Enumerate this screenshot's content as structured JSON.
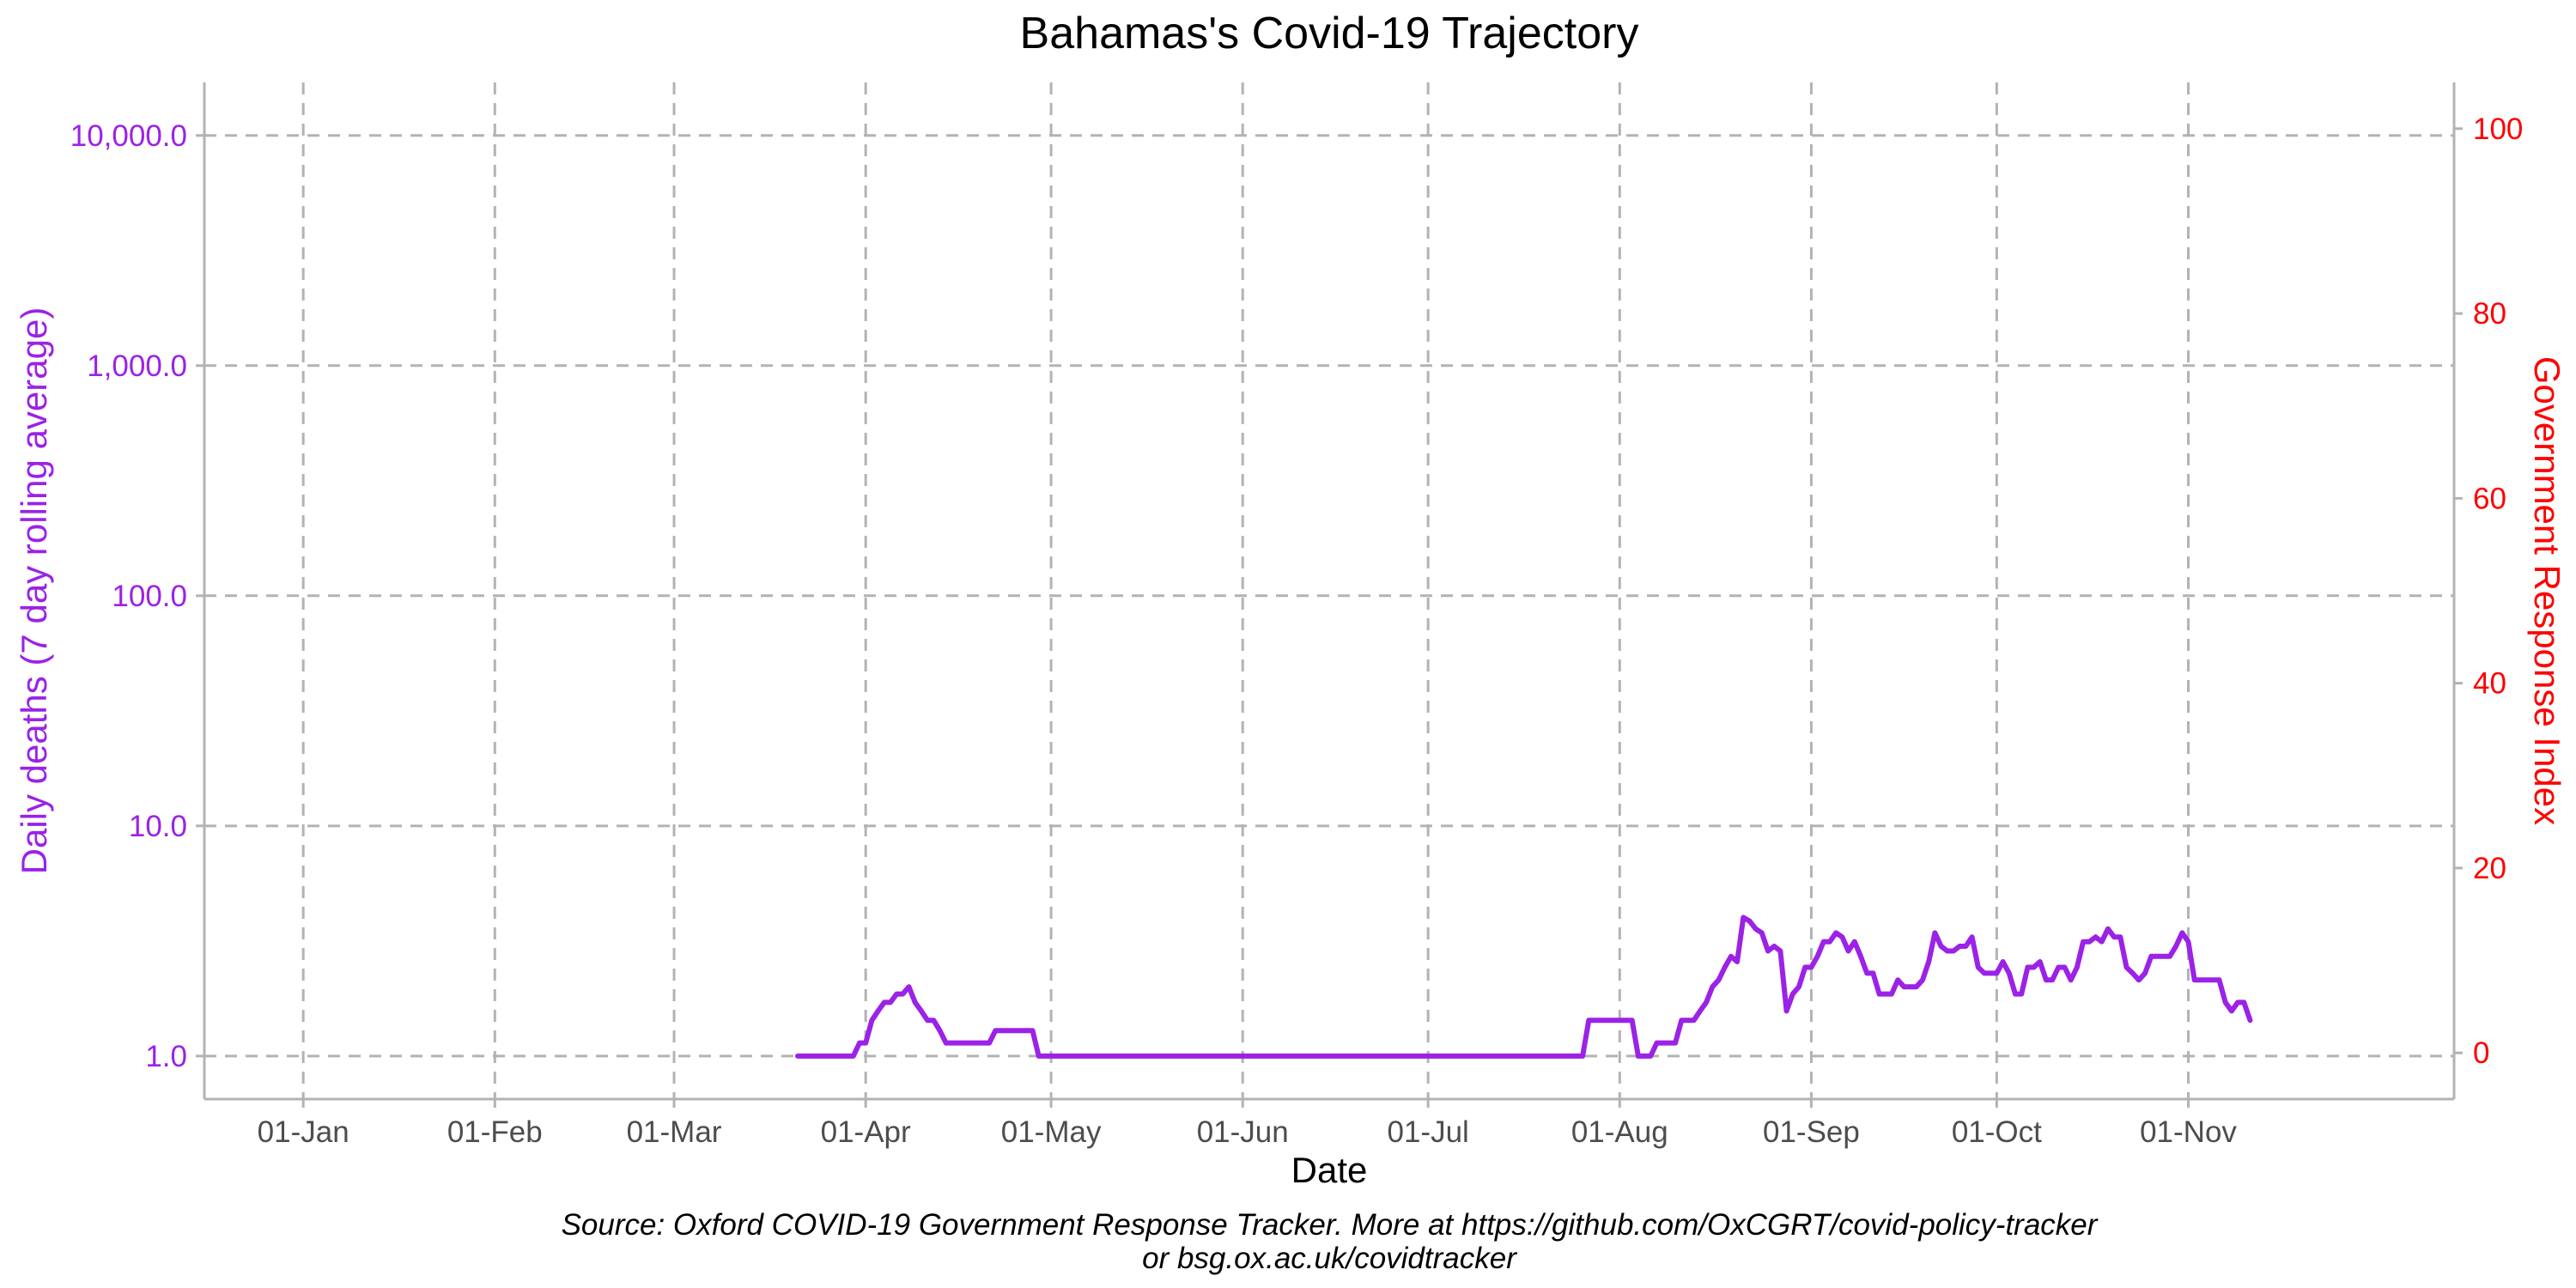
{
  "colors": {
    "deaths": "#9b22e6",
    "response": "#ff0000",
    "text": "#000000",
    "tick": "#4d4d4d",
    "grid": "#b3b3b3",
    "axis": "#b3b3b3"
  },
  "chart_data": {
    "type": "line",
    "title": "Bahamas's Covid-19 Trajectory",
    "xlabel": "Date",
    "ylabel_left": "Daily deaths (7 day rolling average)",
    "ylabel_right": "Government Response Index",
    "caption_line1": "Source: Oxford COVID-19 Government Response Tracker. More at https://github.com/OxCGRT/covid-policy-tracker",
    "caption_line2": "or bsg.ox.ac.uk/covidtracker",
    "x_ticks": [
      {
        "date": "2020-01-01",
        "label": "01-Jan"
      },
      {
        "date": "2020-02-01",
        "label": "01-Feb"
      },
      {
        "date": "2020-03-01",
        "label": "01-Mar"
      },
      {
        "date": "2020-04-01",
        "label": "01-Apr"
      },
      {
        "date": "2020-05-01",
        "label": "01-May"
      },
      {
        "date": "2020-06-01",
        "label": "01-Jun"
      },
      {
        "date": "2020-07-01",
        "label": "01-Jul"
      },
      {
        "date": "2020-08-01",
        "label": "01-Aug"
      },
      {
        "date": "2020-09-01",
        "label": "01-Sep"
      },
      {
        "date": "2020-10-01",
        "label": "01-Oct"
      },
      {
        "date": "2020-11-01",
        "label": "01-Nov"
      }
    ],
    "xlim": [
      "2019-12-16",
      "2020-12-14"
    ],
    "y_left": {
      "scale": "log10",
      "ylim": [
        0.65,
        17000
      ],
      "ticks": [
        {
          "value": 1,
          "label": "1.0"
        },
        {
          "value": 10,
          "label": "10.0"
        },
        {
          "value": 100,
          "label": "100.0"
        },
        {
          "value": 1000,
          "label": "1,000.0"
        },
        {
          "value": 10000,
          "label": "10,000.0"
        }
      ]
    },
    "y_right": {
      "scale": "linear",
      "ylim": [
        -5,
        105
      ],
      "ticks": [
        {
          "value": 0,
          "label": "0"
        },
        {
          "value": 20,
          "label": "20"
        },
        {
          "value": 40,
          "label": "40"
        },
        {
          "value": 60,
          "label": "60"
        },
        {
          "value": 80,
          "label": "80"
        },
        {
          "value": 100,
          "label": "100"
        }
      ]
    },
    "grid": true,
    "legend": "none",
    "series": [
      {
        "axis": "left",
        "points": [
          [
            "2020-03-21",
            1.0
          ],
          [
            "2020-03-30",
            1.0
          ],
          [
            "2020-03-31",
            1.14
          ],
          [
            "2020-04-01",
            1.14
          ],
          [
            "2020-04-02",
            1.43
          ],
          [
            "2020-04-03",
            1.57
          ],
          [
            "2020-04-04",
            1.71
          ],
          [
            "2020-04-05",
            1.71
          ],
          [
            "2020-04-06",
            1.86
          ],
          [
            "2020-04-07",
            1.86
          ],
          [
            "2020-04-08",
            2.0
          ],
          [
            "2020-04-09",
            1.71
          ],
          [
            "2020-04-10",
            1.57
          ],
          [
            "2020-04-11",
            1.43
          ],
          [
            "2020-04-12",
            1.43
          ],
          [
            "2020-04-13",
            1.29
          ],
          [
            "2020-04-14",
            1.14
          ],
          [
            "2020-04-21",
            1.14
          ],
          [
            "2020-04-22",
            1.29
          ],
          [
            "2020-04-28",
            1.29
          ],
          [
            "2020-04-29",
            1.0
          ],
          [
            "2020-07-26",
            1.0
          ],
          [
            "2020-07-27",
            1.43
          ],
          [
            "2020-08-03",
            1.43
          ],
          [
            "2020-08-04",
            1.0
          ],
          [
            "2020-08-06",
            1.0
          ],
          [
            "2020-08-07",
            1.14
          ],
          [
            "2020-08-10",
            1.14
          ],
          [
            "2020-08-11",
            1.43
          ],
          [
            "2020-08-13",
            1.43
          ],
          [
            "2020-08-14",
            1.57
          ],
          [
            "2020-08-15",
            1.71
          ],
          [
            "2020-08-16",
            2.0
          ],
          [
            "2020-08-17",
            2.14
          ],
          [
            "2020-08-18",
            2.43
          ],
          [
            "2020-08-19",
            2.71
          ],
          [
            "2020-08-20",
            2.57
          ],
          [
            "2020-08-21",
            4.0
          ],
          [
            "2020-08-22",
            3.86
          ],
          [
            "2020-08-23",
            3.57
          ],
          [
            "2020-08-24",
            3.43
          ],
          [
            "2020-08-25",
            2.86
          ],
          [
            "2020-08-26",
            3.0
          ],
          [
            "2020-08-27",
            2.86
          ],
          [
            "2020-08-28",
            1.57
          ],
          [
            "2020-08-29",
            1.86
          ],
          [
            "2020-08-30",
            2.0
          ],
          [
            "2020-08-31",
            2.43
          ],
          [
            "2020-09-01",
            2.43
          ],
          [
            "2020-09-02",
            2.71
          ],
          [
            "2020-09-03",
            3.14
          ],
          [
            "2020-09-04",
            3.14
          ],
          [
            "2020-09-05",
            3.43
          ],
          [
            "2020-09-06",
            3.29
          ],
          [
            "2020-09-07",
            2.86
          ],
          [
            "2020-09-08",
            3.14
          ],
          [
            "2020-09-09",
            2.71
          ],
          [
            "2020-09-10",
            2.29
          ],
          [
            "2020-09-11",
            2.29
          ],
          [
            "2020-09-12",
            1.86
          ],
          [
            "2020-09-14",
            1.86
          ],
          [
            "2020-09-15",
            2.14
          ],
          [
            "2020-09-16",
            2.0
          ],
          [
            "2020-09-18",
            2.0
          ],
          [
            "2020-09-19",
            2.14
          ],
          [
            "2020-09-20",
            2.57
          ],
          [
            "2020-09-21",
            3.43
          ],
          [
            "2020-09-22",
            3.0
          ],
          [
            "2020-09-23",
            2.86
          ],
          [
            "2020-09-24",
            2.86
          ],
          [
            "2020-09-25",
            3.0
          ],
          [
            "2020-09-26",
            3.0
          ],
          [
            "2020-09-27",
            3.29
          ],
          [
            "2020-09-28",
            2.43
          ],
          [
            "2020-09-29",
            2.29
          ],
          [
            "2020-09-30",
            2.29
          ],
          [
            "2020-10-01",
            2.29
          ],
          [
            "2020-10-02",
            2.57
          ],
          [
            "2020-10-03",
            2.29
          ],
          [
            "2020-10-04",
            1.86
          ],
          [
            "2020-10-05",
            1.86
          ],
          [
            "2020-10-06",
            2.43
          ],
          [
            "2020-10-07",
            2.43
          ],
          [
            "2020-10-08",
            2.57
          ],
          [
            "2020-10-09",
            2.14
          ],
          [
            "2020-10-10",
            2.14
          ],
          [
            "2020-10-11",
            2.43
          ],
          [
            "2020-10-12",
            2.43
          ],
          [
            "2020-10-13",
            2.14
          ],
          [
            "2020-10-14",
            2.43
          ],
          [
            "2020-10-15",
            3.14
          ],
          [
            "2020-10-16",
            3.14
          ],
          [
            "2020-10-17",
            3.29
          ],
          [
            "2020-10-18",
            3.14
          ],
          [
            "2020-10-19",
            3.57
          ],
          [
            "2020-10-20",
            3.29
          ],
          [
            "2020-10-21",
            3.29
          ],
          [
            "2020-10-22",
            2.43
          ],
          [
            "2020-10-23",
            2.29
          ],
          [
            "2020-10-24",
            2.14
          ],
          [
            "2020-10-25",
            2.29
          ],
          [
            "2020-10-26",
            2.71
          ],
          [
            "2020-10-29",
            2.71
          ],
          [
            "2020-10-30",
            3.0
          ],
          [
            "2020-10-31",
            3.43
          ],
          [
            "2020-11-01",
            3.14
          ],
          [
            "2020-11-02",
            2.14
          ],
          [
            "2020-11-06",
            2.14
          ],
          [
            "2020-11-07",
            1.71
          ],
          [
            "2020-11-08",
            1.57
          ],
          [
            "2020-11-09",
            1.71
          ],
          [
            "2020-11-10",
            1.71
          ],
          [
            "2020-11-11",
            1.43
          ]
        ]
      }
    ]
  }
}
